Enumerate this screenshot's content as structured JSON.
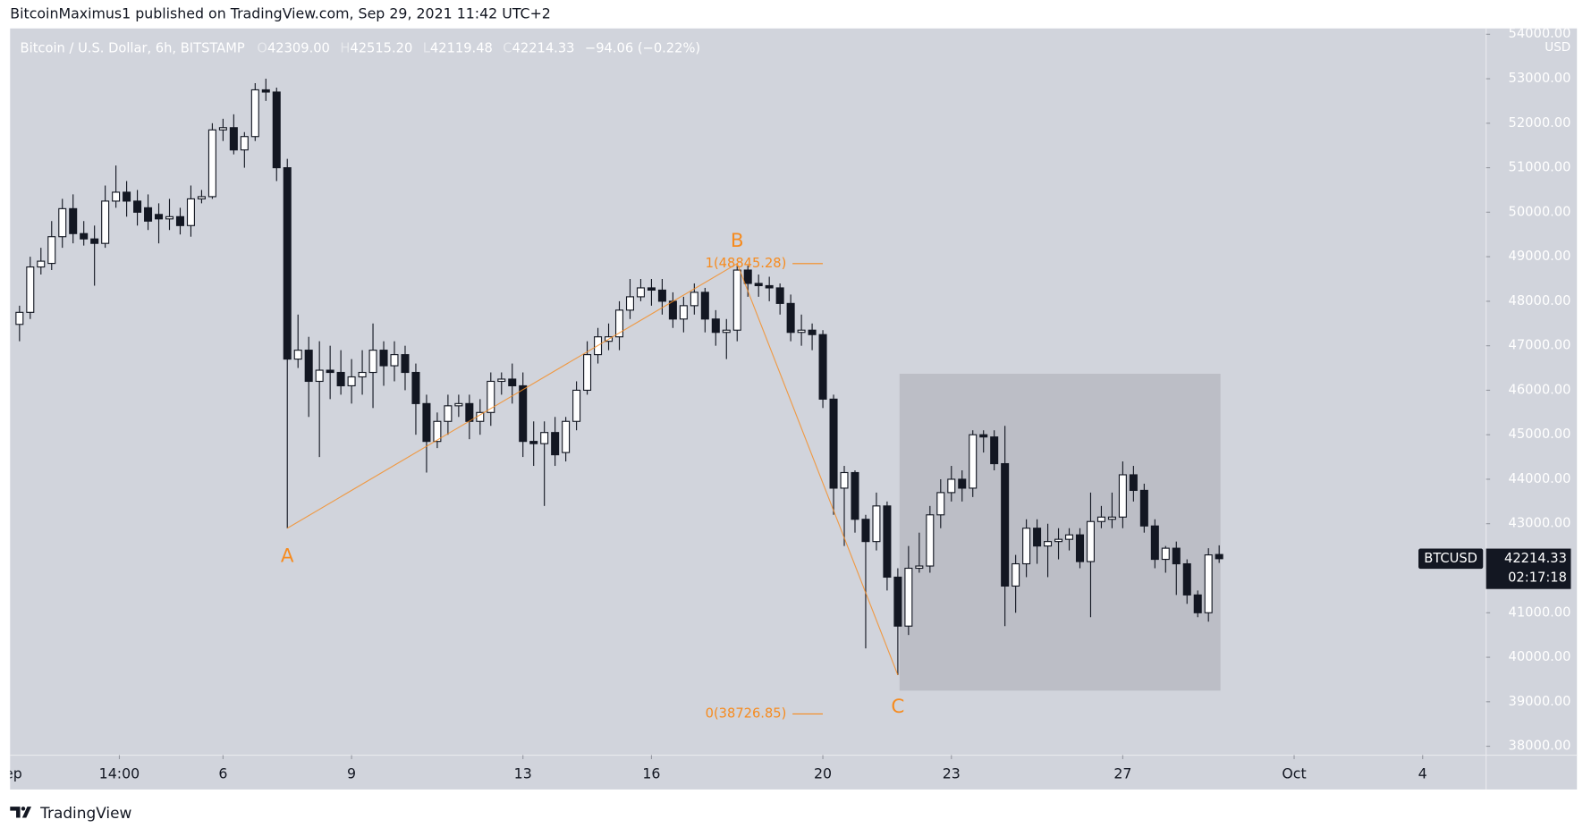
{
  "header": "BitcoinMaximus1 published on TradingView.com, Sep 29, 2021 11:42 UTC+2",
  "footer": "TradingView",
  "chart_data": {
    "type": "candlestick",
    "title": "Bitcoin / U.S. Dollar, 6h, BITSTAMP",
    "ohlc": [
      {
        "key": "O",
        "value": "42309.00"
      },
      {
        "key": "H",
        "value": "42515.20"
      },
      {
        "key": "L",
        "value": "42119.48"
      },
      {
        "key": "C",
        "value": "42214.33"
      }
    ],
    "change": "−94.06 (−0.22%)",
    "y_unit": "USD",
    "symbol": "BTCUSD",
    "last_price": 42214.33,
    "countdown": "02:17:18",
    "up_color": "#ffffff",
    "down_color": "#131722",
    "x": [
      1.25,
      1.5,
      1.75,
      2,
      2.25,
      2.5,
      2.75,
      3,
      3.25,
      3.5,
      3.75,
      4,
      4.25,
      4.5,
      4.75,
      5,
      5.25,
      5.5,
      5.75,
      6,
      6.25,
      6.5,
      6.75,
      7,
      7.25,
      7.5,
      7.75,
      8,
      8.25,
      8.5,
      8.75,
      9,
      9.25,
      9.5,
      9.75,
      10,
      10.25,
      10.5,
      10.75,
      11,
      11.25,
      11.5,
      11.75,
      12,
      12.25,
      12.5,
      12.75,
      13,
      13.25,
      13.5,
      13.75,
      14,
      14.25,
      14.5,
      14.75,
      15,
      15.25,
      15.5,
      15.75,
      16,
      16.25,
      16.5,
      16.75,
      17,
      17.25,
      17.5,
      17.75,
      18,
      18.25,
      18.5,
      18.75,
      19,
      19.25,
      19.5,
      19.75,
      20,
      20.25,
      20.5,
      20.75,
      21,
      21.25,
      21.5,
      21.75,
      22,
      22.25,
      22.5,
      22.75,
      23,
      23.25,
      23.5,
      23.75,
      24,
      24.25,
      24.5,
      24.75,
      25,
      25.25,
      25.5,
      25.75,
      26,
      26.25,
      26.5,
      26.75,
      27,
      27.25,
      27.5,
      27.75,
      28,
      28.25,
      28.5,
      28.75,
      29,
      29.25
    ],
    "open": [
      47480,
      47750,
      48770,
      48850,
      49450,
      50080,
      49520,
      49400,
      49300,
      50250,
      50450,
      50250,
      50100,
      49950,
      49850,
      49900,
      49700,
      50300,
      50350,
      51850,
      51900,
      51400,
      51700,
      52750,
      52700,
      51000,
      46700,
      46900,
      46200,
      46450,
      46400,
      46100,
      46300,
      46400,
      46900,
      46550,
      46800,
      46400,
      45700,
      44850,
      45300,
      45650,
      45700,
      45300,
      45500,
      46200,
      46250,
      46100,
      44850,
      44800,
      45050,
      44600,
      45300,
      46000,
      46800,
      47100,
      47200,
      47800,
      48100,
      48300,
      48250,
      48000,
      47600,
      47900,
      48200,
      47600,
      47300,
      47350,
      48700,
      48400,
      48350,
      48300,
      47950,
      47300,
      47350,
      47250,
      45800,
      43800,
      44150,
      43100,
      42600,
      43400,
      41800,
      40700,
      42000,
      42050,
      43200,
      43700,
      44000,
      43800,
      45000,
      44950,
      44350,
      41600,
      42100,
      42900,
      42500,
      42600,
      42650,
      42750,
      42150,
      43050,
      43100,
      43150,
      44100,
      43750,
      42950,
      42200,
      42450,
      42100,
      41400,
      41000,
      42309
    ],
    "high": [
      47900,
      49000,
      49200,
      49800,
      50300,
      50400,
      49800,
      49700,
      50600,
      51050,
      50700,
      50500,
      50400,
      50200,
      50300,
      50100,
      50600,
      50500,
      52000,
      52100,
      52200,
      51800,
      52900,
      53000,
      52800,
      51200,
      47700,
      47200,
      47100,
      47000,
      46900,
      46700,
      46900,
      47500,
      47100,
      47100,
      47000,
      46600,
      45900,
      45500,
      45900,
      45900,
      45900,
      45800,
      46400,
      46400,
      46600,
      46400,
      45300,
      45300,
      45400,
      45400,
      46200,
      47100,
      47400,
      47500,
      48000,
      48500,
      48500,
      48500,
      48500,
      48200,
      48100,
      48400,
      48300,
      47800,
      47600,
      48850,
      48800,
      48600,
      48550,
      48400,
      48150,
      47700,
      47500,
      47350,
      45900,
      44300,
      44200,
      43200,
      43700,
      43500,
      42000,
      42500,
      42800,
      43400,
      44000,
      44300,
      44200,
      45100,
      45100,
      45100,
      45200,
      42300,
      43100,
      43100,
      43000,
      42900,
      42900,
      42900,
      43700,
      43400,
      43700,
      44400,
      44300,
      43900,
      43100,
      42500,
      42600,
      42200,
      41500,
      42450,
      42515.2
    ],
    "low": [
      47100,
      47600,
      48600,
      48700,
      49200,
      49300,
      49250,
      48350,
      49200,
      50100,
      49900,
      49700,
      49600,
      49300,
      49600,
      49500,
      49450,
      50200,
      50300,
      51600,
      51300,
      51000,
      51600,
      52500,
      50700,
      42900,
      46500,
      45400,
      44500,
      45800,
      45900,
      45700,
      45900,
      45600,
      46100,
      46200,
      46000,
      45000,
      44150,
      44700,
      45000,
      45400,
      44900,
      45000,
      45200,
      45900,
      45700,
      44500,
      44300,
      43400,
      44300,
      44400,
      45100,
      45900,
      46600,
      46900,
      46900,
      47600,
      48000,
      47900,
      47700,
      47400,
      47300,
      47700,
      47300,
      47000,
      46700,
      47100,
      48100,
      48100,
      48000,
      47700,
      47100,
      47000,
      46900,
      45600,
      43200,
      42500,
      42800,
      40200,
      42400,
      41500,
      39600,
      40500,
      41900,
      41900,
      42900,
      43500,
      43500,
      43600,
      44600,
      44200,
      40700,
      41000,
      41800,
      42100,
      41800,
      42200,
      42400,
      42000,
      40900,
      42900,
      42900,
      42900,
      43500,
      42800,
      42000,
      41900,
      41400,
      41200,
      40900,
      40800,
      42119.48
    ],
    "close": [
      47750,
      48770,
      48900,
      49450,
      50080,
      49520,
      49400,
      49300,
      50250,
      50450,
      50250,
      50000,
      49800,
      49850,
      49900,
      49700,
      50300,
      50350,
      51850,
      51900,
      51400,
      51700,
      52750,
      52700,
      51000,
      46700,
      46900,
      46200,
      46450,
      46400,
      46100,
      46300,
      46400,
      46900,
      46550,
      46800,
      46400,
      45700,
      44850,
      45300,
      45650,
      45700,
      45300,
      45500,
      46200,
      46250,
      46100,
      44850,
      44800,
      45050,
      44550,
      45300,
      46000,
      46800,
      47200,
      47200,
      47800,
      48100,
      48300,
      48250,
      48000,
      47600,
      47900,
      48200,
      47600,
      47300,
      47350,
      48700,
      48400,
      48350,
      48300,
      47950,
      47300,
      47350,
      47250,
      45800,
      43800,
      44150,
      43100,
      42600,
      43400,
      41800,
      40700,
      42000,
      42050,
      43200,
      43700,
      44000,
      43800,
      45000,
      44950,
      44350,
      41600,
      42100,
      42900,
      42500,
      42600,
      42650,
      42750,
      42150,
      43050,
      43150,
      43150,
      44100,
      43750,
      42950,
      42200,
      42450,
      42100,
      41400,
      41000,
      42300,
      42214.33
    ],
    "xlim": [
      1.03,
      35.48
    ],
    "xticks": [
      {
        "value": 1,
        "label": "Sep"
      },
      {
        "value": 3.58,
        "label": "14:00"
      },
      6,
      9,
      13,
      16,
      20,
      23,
      27,
      {
        "value": 31,
        "label": "Oct"
      },
      {
        "value": 34,
        "label": "4"
      }
    ],
    "ylim": [
      37800,
      54130
    ],
    "yticks": [
      {
        "value": 38000,
        "label": "38000.00"
      },
      {
        "value": 39000,
        "label": "39000.00"
      },
      {
        "value": 40000,
        "label": "40000.00"
      },
      {
        "value": 41000,
        "label": "41000.00"
      },
      {
        "value": 42000,
        "label": "42000.00"
      },
      {
        "value": 43000,
        "label": "43000.00"
      },
      {
        "value": 44000,
        "label": "44000.00"
      },
      {
        "value": 45000,
        "label": "45000.00"
      },
      {
        "value": 46000,
        "label": "46000.00"
      },
      {
        "value": 47000,
        "label": "47000.00"
      },
      {
        "value": 48000,
        "label": "48000.00"
      },
      {
        "value": 49000,
        "label": "49000.00"
      },
      {
        "value": 50000,
        "label": "50000.00"
      },
      {
        "value": 51000,
        "label": "51000.00"
      },
      {
        "value": 52000,
        "label": "52000.00"
      },
      {
        "value": 53000,
        "label": "53000.00"
      },
      {
        "value": 54000,
        "label": "54000.00"
      }
    ],
    "grid": false,
    "zone": {
      "x": [
        21.79,
        29.28
      ],
      "y": [
        39250,
        46370
      ],
      "color": "#bcbec6"
    },
    "wave_color": "#f68b1f",
    "waves": [
      {
        "label": "A",
        "x": 7.5,
        "value": 42900
      },
      {
        "label": "B",
        "x": 18.0,
        "value": 48845.28
      },
      {
        "label": "C",
        "x": 21.75,
        "value": 39600
      }
    ],
    "fib_levels": [
      {
        "label": "1(48845.28)",
        "value": 48845.28
      },
      {
        "label": "0(38726.85)",
        "value": 38726.85
      }
    ]
  }
}
